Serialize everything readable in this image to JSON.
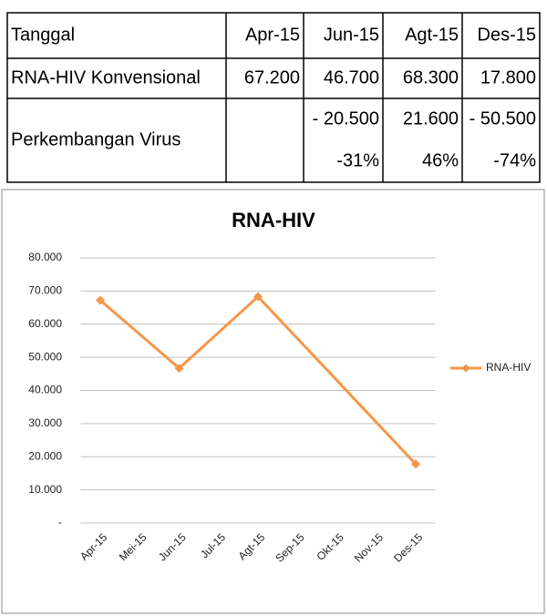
{
  "table": {
    "header": [
      "Tanggal",
      "Apr-15",
      "Jun-15",
      "Agt-15",
      "Des-15"
    ],
    "rows": [
      [
        "RNA-HIV Konvensional",
        "67.200",
        "46.700",
        "68.300",
        "17.800"
      ]
    ],
    "growth": {
      "label": "Perkembangan Virus",
      "change": [
        "- 20.500",
        "21.600",
        "- 50.500"
      ],
      "percent": [
        "-31%",
        "46%",
        "-74%"
      ]
    }
  },
  "chart_data": {
    "type": "line",
    "title": "RNA-HIV",
    "xticks": [
      "Apr-15",
      "Mei-15",
      "Jun-15",
      "Jul-15",
      "Agt-15",
      "Sep-15",
      "Okt-15",
      "Nov-15",
      "Des-15"
    ],
    "x": [
      "Apr-15",
      "Jun-15",
      "Agt-15",
      "Des-15"
    ],
    "series": [
      {
        "name": "RNA-HIV",
        "color": "#f79646",
        "values": [
          67200,
          46700,
          68300,
          17800
        ]
      }
    ],
    "ylim": [
      0,
      80000
    ],
    "yticks": [
      {
        "value": 0,
        "label": "-"
      },
      {
        "value": 10000,
        "label": "10.000"
      },
      {
        "value": 20000,
        "label": "20.000"
      },
      {
        "value": 30000,
        "label": "30.000"
      },
      {
        "value": 40000,
        "label": "40.000"
      },
      {
        "value": 50000,
        "label": "50.000"
      },
      {
        "value": 60000,
        "label": "60.000"
      },
      {
        "value": 70000,
        "label": "70.000"
      },
      {
        "value": 80000,
        "label": "80.000"
      }
    ],
    "grid": true,
    "legend": "right"
  }
}
